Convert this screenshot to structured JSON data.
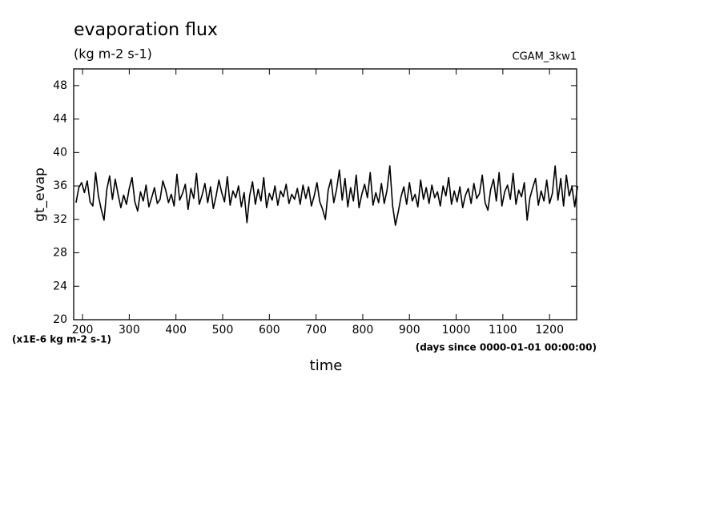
{
  "chart_data": {
    "type": "line",
    "title": "evaporation flux",
    "subtitle": "(kg m-2 s-1)",
    "dataset_label": "CGAM_3kw1",
    "ylabel": "gt_evap",
    "xlabel": "time",
    "y_units_note": "(x1E-6 kg m-2 s-1)",
    "x_units_note": "(days since 0000-01-01 00:00:00)",
    "color": "#000000",
    "xlim": [
      181,
      1258
    ],
    "ylim": [
      20,
      50
    ],
    "xticks": [
      200,
      300,
      400,
      500,
      600,
      700,
      800,
      900,
      1000,
      1100,
      1200
    ],
    "yticks": [
      20,
      24,
      28,
      32,
      36,
      40,
      44,
      48
    ],
    "x": [
      186,
      192,
      198,
      204,
      210,
      216,
      222,
      228,
      234,
      240,
      246,
      252,
      258,
      264,
      270,
      276,
      282,
      288,
      294,
      300,
      306,
      312,
      318,
      324,
      330,
      336,
      342,
      348,
      354,
      360,
      366,
      372,
      378,
      384,
      390,
      396,
      402,
      408,
      414,
      420,
      426,
      432,
      438,
      444,
      450,
      456,
      462,
      468,
      474,
      480,
      486,
      492,
      498,
      504,
      510,
      516,
      522,
      528,
      534,
      540,
      546,
      552,
      558,
      564,
      570,
      576,
      582,
      588,
      594,
      600,
      606,
      612,
      618,
      624,
      630,
      636,
      642,
      648,
      654,
      660,
      666,
      672,
      678,
      684,
      690,
      696,
      702,
      708,
      714,
      720,
      726,
      732,
      738,
      744,
      750,
      756,
      762,
      768,
      774,
      780,
      786,
      792,
      798,
      804,
      810,
      816,
      822,
      828,
      834,
      840,
      846,
      852,
      858,
      864,
      870,
      876,
      882,
      888,
      894,
      900,
      906,
      912,
      918,
      924,
      930,
      936,
      942,
      948,
      954,
      960,
      966,
      972,
      978,
      984,
      990,
      996,
      1002,
      1008,
      1014,
      1020,
      1026,
      1032,
      1038,
      1044,
      1050,
      1056,
      1062,
      1068,
      1074,
      1080,
      1086,
      1092,
      1098,
      1104,
      1110,
      1116,
      1122,
      1128,
      1134,
      1140,
      1146,
      1152,
      1158,
      1164,
      1170,
      1176,
      1182,
      1188,
      1194,
      1200,
      1206,
      1212,
      1218,
      1224,
      1230,
      1236,
      1242,
      1248,
      1254,
      1260
    ],
    "values": [
      34.0,
      35.8,
      36.4,
      35.2,
      36.6,
      34.1,
      33.6,
      37.6,
      34.8,
      33.2,
      31.9,
      35.6,
      37.2,
      34.4,
      36.8,
      35.0,
      33.4,
      34.9,
      33.8,
      35.7,
      37.0,
      34.1,
      33.0,
      35.3,
      34.2,
      36.1,
      33.5,
      34.6,
      35.8,
      33.9,
      34.4,
      36.6,
      35.5,
      34.0,
      35.0,
      33.6,
      37.4,
      34.3,
      35.1,
      36.2,
      33.2,
      35.7,
      34.5,
      37.5,
      33.8,
      34.9,
      36.3,
      34.0,
      35.9,
      33.3,
      34.8,
      36.7,
      35.2,
      34.1,
      37.1,
      33.7,
      35.4,
      34.6,
      36.0,
      33.5,
      35.2,
      31.6,
      34.9,
      36.5,
      33.8,
      35.6,
      34.2,
      37.0,
      33.4,
      35.1,
      34.3,
      36.0,
      33.7,
      35.4,
      34.7,
      36.2,
      33.9,
      35.0,
      34.4,
      35.7,
      33.8,
      36.1,
      34.5,
      35.9,
      33.6,
      34.8,
      36.4,
      34.1,
      33.2,
      32.0,
      35.5,
      36.8,
      34.0,
      35.6,
      37.9,
      34.3,
      36.9,
      33.5,
      35.8,
      34.2,
      37.3,
      33.4,
      35.0,
      36.2,
      34.6,
      37.6,
      33.7,
      35.2,
      34.0,
      36.3,
      33.9,
      35.5,
      38.4,
      33.6,
      31.3,
      32.9,
      34.7,
      35.9,
      33.8,
      36.4,
      34.2,
      35.0,
      33.5,
      36.7,
      34.4,
      35.8,
      33.9,
      36.1,
      34.6,
      35.3,
      33.6,
      36.0,
      34.8,
      37.0,
      33.8,
      35.4,
      34.1,
      35.9,
      33.4,
      34.9,
      35.7,
      33.9,
      36.3,
      34.5,
      35.1,
      37.3,
      34.0,
      33.1,
      35.6,
      36.8,
      34.2,
      37.6,
      33.6,
      35.3,
      36.1,
      34.4,
      37.5,
      33.8,
      35.5,
      34.7,
      36.4,
      31.9,
      34.6,
      35.8,
      36.9,
      33.7,
      35.4,
      34.2,
      36.7,
      33.9,
      35.1,
      38.4,
      34.3,
      36.9,
      33.6,
      37.3,
      34.8,
      35.9,
      33.5,
      36.0
    ]
  }
}
